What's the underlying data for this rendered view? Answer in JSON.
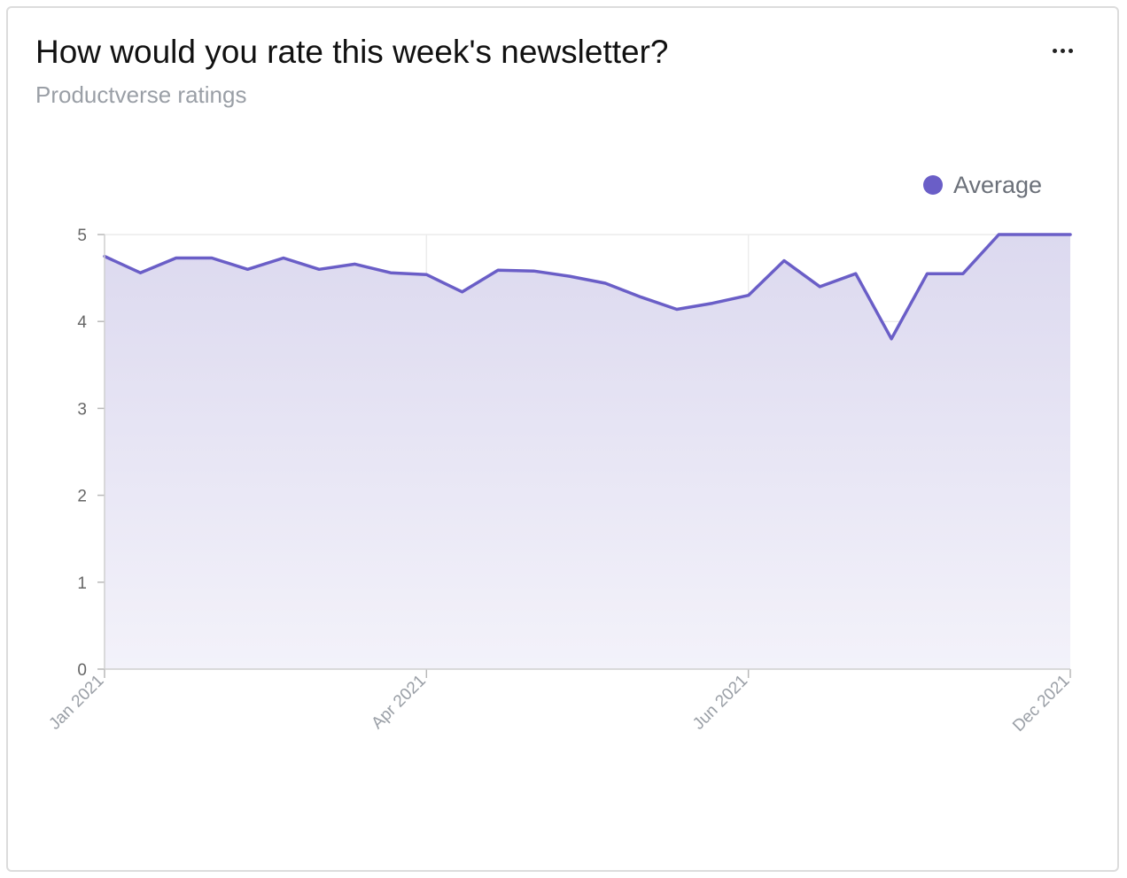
{
  "header": {
    "title": "How would you rate this week's newsletter?",
    "subtitle": "Productverse ratings"
  },
  "icons": {
    "more": "more-horizontal-icon"
  },
  "colors": {
    "series": "#6a5ec7",
    "area_top": "#dcd9ef",
    "area_bottom": "#f3f2fa",
    "grid": "#ececec",
    "axis_text": "#666666",
    "tick_text": "#9a9fa6",
    "legend_text": "#6b7079"
  },
  "chart_data": {
    "type": "area",
    "title": "How would you rate this week's newsletter?",
    "subtitle": "Productverse ratings",
    "legend": {
      "position": "top-right",
      "entries": [
        "Average"
      ]
    },
    "x_ticks": [
      "Jan 2021",
      "Apr 2021",
      "Jun 2021",
      "Dec 2021"
    ],
    "y_ticks": [
      0,
      1,
      2,
      3,
      4,
      5
    ],
    "ylim": [
      0,
      5
    ],
    "grid": true,
    "series": [
      {
        "name": "Average",
        "values": [
          4.75,
          4.56,
          4.73,
          4.73,
          4.6,
          4.73,
          4.6,
          4.66,
          4.56,
          4.54,
          4.34,
          4.59,
          4.58,
          4.52,
          4.44,
          4.28,
          4.14,
          4.21,
          4.3,
          4.7,
          4.4,
          4.55,
          3.8,
          4.55,
          4.55,
          5.0,
          5.0,
          5.0
        ]
      }
    ]
  }
}
